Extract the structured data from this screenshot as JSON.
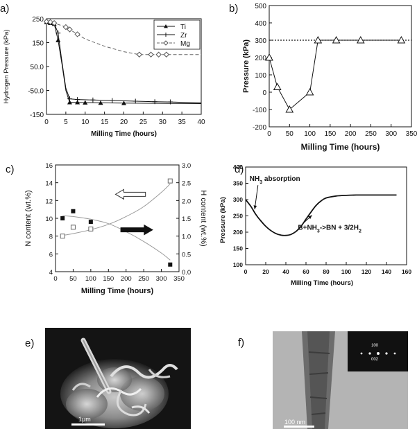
{
  "figure": {
    "panel_labels": [
      "a)",
      "b)",
      "c)",
      "d)",
      "e)",
      "f)"
    ],
    "scale_bar_e": "1μm",
    "scale_bar_f": "100 nm",
    "inset_f_labels": [
      "100",
      "002"
    ]
  },
  "chart_data": [
    {
      "id": "a",
      "type": "line",
      "xlabel": "Milling Time  (hours)",
      "ylabel": "Hydrogen Pressure  (kPa)",
      "xlim": [
        0,
        40
      ],
      "ylim": [
        -150,
        250
      ],
      "xticks": [
        0,
        5,
        10,
        15,
        20,
        25,
        30,
        35,
        40
      ],
      "yticks": [
        {
          "value": 250,
          "label": "250"
        },
        {
          "value": 150,
          "label": "150"
        },
        {
          "value": 50,
          "label": "50.0"
        },
        {
          "value": -50,
          "label": "-50.0"
        },
        {
          "value": -150,
          "label": "-150"
        }
      ],
      "grid": false,
      "legend_position": "top-right",
      "series": [
        {
          "name": "Ti",
          "marker": "triangle",
          "line": "solid",
          "points": [
            [
              0,
              235
            ],
            [
              1,
              232
            ],
            [
              2,
              228
            ],
            [
              3,
              160
            ],
            [
              4,
              60
            ],
            [
              5,
              -50
            ],
            [
              6,
              -100
            ],
            [
              8,
              -100
            ],
            [
              10,
              -101
            ],
            [
              14,
              -102
            ],
            [
              20,
              -103
            ],
            [
              30,
              -104
            ],
            [
              40,
              -105
            ]
          ],
          "markers_at": [
            [
              0,
              235
            ],
            [
              1,
              232
            ],
            [
              2,
              228
            ],
            [
              3,
              160
            ],
            [
              6,
              -100
            ],
            [
              8,
              -100
            ],
            [
              10,
              -101
            ],
            [
              14,
              -102
            ],
            [
              20,
              -103
            ]
          ]
        },
        {
          "name": "Zr",
          "marker": "plus",
          "line": "solid",
          "points": [
            [
              0,
              238
            ],
            [
              1,
              235
            ],
            [
              2,
              230
            ],
            [
              3,
              190
            ],
            [
              4,
              70
            ],
            [
              5,
              -40
            ],
            [
              6,
              -85
            ],
            [
              8,
              -88
            ],
            [
              12,
              -90
            ],
            [
              17,
              -92
            ],
            [
              23,
              -95
            ],
            [
              28,
              -97
            ],
            [
              32,
              -98
            ],
            [
              40,
              -102
            ]
          ],
          "markers_at": [
            [
              0,
              238
            ],
            [
              1,
              235
            ],
            [
              2,
              230
            ],
            [
              3,
              190
            ],
            [
              6,
              -85
            ],
            [
              8,
              -88
            ],
            [
              12,
              -90
            ],
            [
              17,
              -92
            ],
            [
              23,
              -95
            ],
            [
              28,
              -97
            ],
            [
              32,
              -98
            ]
          ]
        },
        {
          "name": "Mg",
          "marker": "diamond",
          "line": "dashed",
          "points": [
            [
              0,
              238
            ],
            [
              1,
              236
            ],
            [
              2,
              232
            ],
            [
              5,
              215
            ],
            [
              6,
              205
            ],
            [
              8,
              185
            ],
            [
              10,
              165
            ],
            [
              15,
              135
            ],
            [
              20,
              112
            ],
            [
              24,
              100
            ],
            [
              27,
              100
            ],
            [
              29,
              100
            ],
            [
              31,
              100
            ],
            [
              40,
              100
            ]
          ],
          "markers_at": [
            [
              0,
              238
            ],
            [
              1,
              236
            ],
            [
              2,
              232
            ],
            [
              5,
              215
            ],
            [
              6,
              205
            ],
            [
              8,
              185
            ],
            [
              24,
              100
            ],
            [
              27,
              100
            ],
            [
              29,
              100
            ],
            [
              31,
              100
            ]
          ]
        }
      ]
    },
    {
      "id": "b",
      "type": "line",
      "xlabel": "Milling Time (hours)",
      "ylabel": "Pressure (kPa)",
      "xlim": [
        0,
        350
      ],
      "ylim": [
        -200,
        500
      ],
      "xticks": [
        0,
        50,
        100,
        150,
        200,
        250,
        300,
        350
      ],
      "yticks": [
        -200,
        -100,
        0,
        100,
        200,
        300,
        400,
        500
      ],
      "grid": false,
      "reference_line": {
        "y": 300,
        "style": "dotted"
      },
      "series": [
        {
          "name": "",
          "marker": "triangle",
          "line": "solid",
          "points": [
            [
              0,
              200
            ],
            [
              20,
              30
            ],
            [
              50,
              -100
            ],
            [
              100,
              0
            ],
            [
              120,
              300
            ],
            [
              165,
              300
            ],
            [
              225,
              300
            ],
            [
              325,
              300
            ]
          ]
        }
      ]
    },
    {
      "id": "c",
      "type": "scatter",
      "xlabel": "Milling Time (hours)",
      "ylabel": "N content (wt.%)",
      "y2label": "H content (wt.%)",
      "xlim": [
        0,
        350
      ],
      "ylim": [
        4,
        16
      ],
      "y2lim": [
        0.0,
        3.0
      ],
      "xticks": [
        0,
        50,
        100,
        150,
        200,
        250,
        300,
        350
      ],
      "yticks": [
        4,
        6,
        8,
        10,
        12,
        14,
        16
      ],
      "y2ticks": [
        "0.0",
        "0.5",
        "1.0",
        "1.5",
        "2.0",
        "2.5",
        "3.0"
      ],
      "grid": false,
      "series": [
        {
          "name": "",
          "axis": "left",
          "marker": "filled-square",
          "points": [
            [
              20,
              10.0
            ],
            [
              50,
              10.8
            ],
            [
              100,
              9.6
            ],
            [
              325,
              4.8
            ]
          ],
          "fit": [
            [
              20,
              10.3
            ],
            [
              50,
              10.2
            ],
            [
              100,
              9.9
            ],
            [
              150,
              9.4
            ],
            [
              200,
              8.5
            ],
            [
              250,
              7.4
            ],
            [
              300,
              6.1
            ],
            [
              325,
              5.3
            ]
          ]
        },
        {
          "name": "",
          "axis": "right",
          "marker": "open-square",
          "points": [
            [
              20,
              1.0
            ],
            [
              50,
              1.25
            ],
            [
              100,
              1.2
            ],
            [
              325,
              2.55
            ]
          ],
          "fit": [
            [
              20,
              1.02
            ],
            [
              50,
              1.07
            ],
            [
              100,
              1.18
            ],
            [
              150,
              1.33
            ],
            [
              200,
              1.55
            ],
            [
              250,
              1.83
            ],
            [
              300,
              2.23
            ],
            [
              325,
              2.47
            ]
          ]
        }
      ],
      "arrows": [
        {
          "style": "open",
          "direction": "left",
          "from": [
            255,
            12.7
          ],
          "to": [
            170,
            12.7
          ]
        },
        {
          "style": "filled",
          "direction": "right",
          "from": [
            185,
            8.7
          ],
          "to": [
            275,
            8.7
          ]
        }
      ]
    },
    {
      "id": "d",
      "type": "line",
      "xlabel": "Milling Time (hours)",
      "ylabel": "Pressure (kPa)",
      "xlim": [
        0,
        160
      ],
      "ylim": [
        100,
        400
      ],
      "xticks": [
        0,
        20,
        40,
        60,
        80,
        100,
        120,
        140,
        160
      ],
      "yticks": [
        100,
        150,
        200,
        250,
        300,
        350,
        400
      ],
      "grid": false,
      "annotations": [
        {
          "text": "NH",
          "sub": "3",
          "tail": " absorption",
          "at": [
            4,
            357
          ],
          "arrow_to": [
            9,
            270
          ]
        },
        {
          "text": "B+NH",
          "sub": "3",
          "tail": "->BN + 3/2H",
          "sub2": "2",
          "at": [
            52,
            207
          ],
          "arrow_to": [
            66,
            252
          ]
        }
      ],
      "series": [
        {
          "name": "",
          "line": "solid",
          "points": [
            [
              0,
              300
            ],
            [
              5,
              280
            ],
            [
              10,
              255
            ],
            [
              15,
              235
            ],
            [
              20,
              218
            ],
            [
              25,
              205
            ],
            [
              30,
              196
            ],
            [
              35,
              191
            ],
            [
              40,
              190
            ],
            [
              45,
              193
            ],
            [
              50,
              202
            ],
            [
              55,
              218
            ],
            [
              60,
              240
            ],
            [
              65,
              262
            ],
            [
              70,
              282
            ],
            [
              75,
              296
            ],
            [
              80,
              305
            ],
            [
              90,
              311
            ],
            [
              100,
              313
            ],
            [
              110,
              314
            ],
            [
              120,
              314
            ],
            [
              130,
              314
            ],
            [
              140,
              314
            ],
            [
              150,
              314
            ]
          ]
        }
      ]
    }
  ]
}
